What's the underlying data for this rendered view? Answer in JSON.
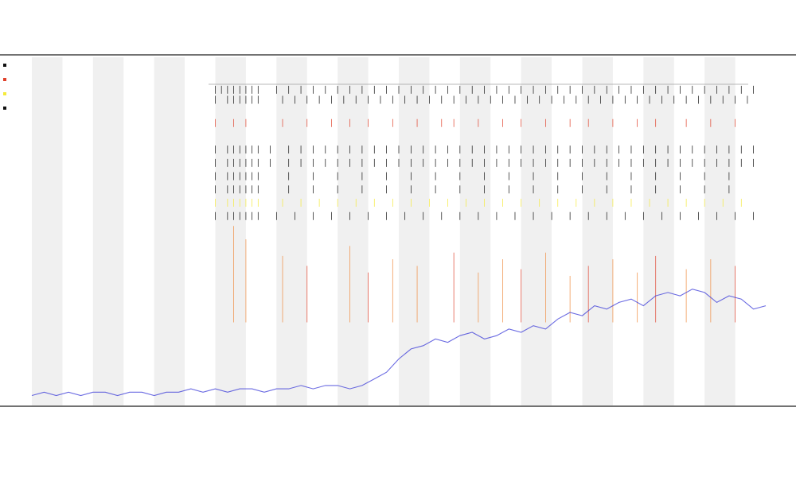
{
  "chart_data": {
    "type": "line",
    "title": "",
    "subtitle_lines": [],
    "xlabel": "",
    "ylabel": "",
    "grid": false,
    "legend": "top-left",
    "band_fill": "#f0f0f0",
    "colors": {
      "series_line": "#3a3ad8",
      "marker_black": "#111111",
      "marker_red": "#e0402a",
      "marker_orange": "#f08a3c",
      "marker_yellow": "#f5ea3a",
      "axis": "#444444"
    },
    "legend_entries": [
      {
        "color": "#111111"
      },
      {
        "color": "#e0402a"
      },
      {
        "color": "#f5ea3a"
      },
      {
        "color": "#111111"
      }
    ],
    "track_labels": [],
    "x_range": [
      0,
      240
    ],
    "y_range": [
      0,
      100
    ],
    "band_count": 24,
    "band_shaded_indices": [
      0,
      2,
      4,
      6,
      8,
      10,
      12,
      14,
      16,
      18,
      20,
      22
    ],
    "x_ticks": [],
    "series": [
      {
        "x": [
          0,
          4,
          8,
          12,
          16,
          20,
          24,
          28,
          32,
          36,
          40,
          44,
          48,
          52,
          56,
          60,
          64,
          68,
          72,
          76,
          80,
          84,
          88,
          92,
          96,
          100,
          104,
          108,
          112,
          116,
          120,
          124,
          128,
          132,
          136,
          140,
          144,
          148,
          152,
          156,
          160,
          164,
          168,
          172,
          176,
          180,
          184,
          188,
          192,
          196,
          200,
          204,
          208,
          212,
          216,
          220,
          224,
          228,
          232,
          236,
          240
        ],
        "y": [
          3,
          4,
          3,
          4,
          3,
          4,
          4,
          3,
          4,
          4,
          3,
          4,
          4,
          5,
          4,
          5,
          4,
          5,
          5,
          4,
          5,
          5,
          6,
          5,
          6,
          6,
          5,
          6,
          8,
          10,
          14,
          17,
          18,
          20,
          19,
          21,
          22,
          20,
          21,
          23,
          22,
          24,
          23,
          26,
          28,
          27,
          30,
          29,
          31,
          32,
          30,
          33,
          34,
          33,
          35,
          34,
          31,
          33,
          32,
          29,
          30
        ]
      }
    ],
    "marker_rows": [
      {
        "color": "#111111",
        "y": 95,
        "events": [
          60,
          62,
          64,
          66,
          68,
          70,
          72,
          74,
          80,
          84,
          88,
          92,
          96,
          100,
          104,
          108,
          112,
          116,
          120,
          124,
          128,
          132,
          136,
          140,
          144,
          148,
          152,
          156,
          160,
          164,
          168,
          172,
          176,
          180,
          184,
          188,
          192,
          196,
          200,
          204,
          208,
          212,
          216,
          220,
          224,
          228,
          232,
          236
        ]
      },
      {
        "color": "#111111",
        "y": 92,
        "events": [
          60,
          64,
          66,
          68,
          70,
          72,
          74,
          82,
          86,
          90,
          94,
          98,
          102,
          106,
          110,
          114,
          118,
          122,
          126,
          130,
          134,
          138,
          142,
          146,
          150,
          154,
          158,
          162,
          166,
          170,
          174,
          178,
          182,
          186,
          190,
          194,
          198,
          202,
          206,
          210,
          214,
          218,
          222,
          226,
          230,
          234
        ]
      },
      {
        "color": "#e0402a",
        "y": 85,
        "events": [
          60,
          66,
          70,
          82,
          90,
          98,
          104,
          110,
          118,
          126,
          134,
          138,
          146,
          154,
          160,
          168,
          176,
          182,
          190,
          198,
          204,
          214,
          222,
          230
        ]
      },
      {
        "color": "#111111",
        "y": 77,
        "events": [
          60,
          64,
          66,
          68,
          70,
          72,
          74,
          78,
          84,
          88,
          92,
          96,
          100,
          104,
          108,
          112,
          116,
          120,
          124,
          128,
          132,
          136,
          140,
          144,
          148,
          152,
          156,
          160,
          164,
          168,
          172,
          176,
          180,
          184,
          188,
          192,
          196,
          200,
          204,
          208,
          212,
          216,
          220,
          224,
          228,
          232,
          236
        ]
      },
      {
        "color": "#111111",
        "y": 73,
        "events": [
          60,
          64,
          66,
          68,
          70,
          72,
          74,
          78,
          84,
          88,
          92,
          96,
          100,
          104,
          108,
          112,
          116,
          120,
          124,
          128,
          132,
          136,
          140,
          144,
          148,
          152,
          156,
          160,
          164,
          168,
          172,
          176,
          180,
          184,
          188,
          192,
          196,
          200,
          204,
          208,
          212,
          216,
          220,
          224,
          228,
          232,
          236
        ]
      },
      {
        "color": "#111111",
        "y": 69,
        "events": [
          60,
          64,
          66,
          68,
          70,
          72,
          74,
          84,
          92,
          100,
          108,
          116,
          124,
          132,
          140,
          148,
          156,
          164,
          172,
          180,
          188,
          196,
          204,
          212,
          220,
          228
        ]
      },
      {
        "color": "#111111",
        "y": 65,
        "events": [
          60,
          64,
          66,
          68,
          70,
          72,
          74,
          84,
          92,
          100,
          108,
          116,
          124,
          132,
          140,
          148,
          156,
          164,
          172,
          180,
          188,
          196,
          204,
          212,
          220,
          228
        ]
      },
      {
        "color": "#f5ea3a",
        "y": 61,
        "events": [
          60,
          64,
          66,
          68,
          70,
          72,
          74,
          82,
          88,
          94,
          100,
          106,
          112,
          118,
          124,
          130,
          136,
          142,
          148,
          154,
          160,
          166,
          172,
          178,
          184,
          190,
          196,
          202,
          208,
          214,
          220,
          226,
          232
        ]
      },
      {
        "color": "#111111",
        "y": 57,
        "events": [
          60,
          64,
          66,
          68,
          70,
          72,
          74,
          80,
          86,
          92,
          98,
          104,
          110,
          116,
          122,
          128,
          134,
          140,
          146,
          152,
          158,
          164,
          170,
          176,
          182,
          188,
          194,
          200,
          206,
          212,
          218,
          224,
          230,
          236
        ]
      }
    ],
    "spikes": [
      {
        "x": 66,
        "top": 54,
        "color": "#f08a3c"
      },
      {
        "x": 70,
        "top": 50,
        "color": "#f08a3c"
      },
      {
        "x": 82,
        "top": 45,
        "color": "#f08a3c"
      },
      {
        "x": 90,
        "top": 42,
        "color": "#e0402a"
      },
      {
        "x": 104,
        "top": 48,
        "color": "#f08a3c"
      },
      {
        "x": 110,
        "top": 40,
        "color": "#e0402a"
      },
      {
        "x": 118,
        "top": 44,
        "color": "#f08a3c"
      },
      {
        "x": 126,
        "top": 42,
        "color": "#f08a3c"
      },
      {
        "x": 138,
        "top": 46,
        "color": "#e0402a"
      },
      {
        "x": 146,
        "top": 40,
        "color": "#f08a3c"
      },
      {
        "x": 154,
        "top": 44,
        "color": "#f08a3c"
      },
      {
        "x": 160,
        "top": 41,
        "color": "#e0402a"
      },
      {
        "x": 168,
        "top": 46,
        "color": "#f08a3c"
      },
      {
        "x": 176,
        "top": 39,
        "color": "#f08a3c"
      },
      {
        "x": 182,
        "top": 42,
        "color": "#e0402a"
      },
      {
        "x": 190,
        "top": 44,
        "color": "#f08a3c"
      },
      {
        "x": 198,
        "top": 40,
        "color": "#f08a3c"
      },
      {
        "x": 204,
        "top": 45,
        "color": "#e0402a"
      },
      {
        "x": 214,
        "top": 41,
        "color": "#f08a3c"
      },
      {
        "x": 222,
        "top": 44,
        "color": "#f08a3c"
      },
      {
        "x": 230,
        "top": 42,
        "color": "#e0402a"
      }
    ]
  }
}
